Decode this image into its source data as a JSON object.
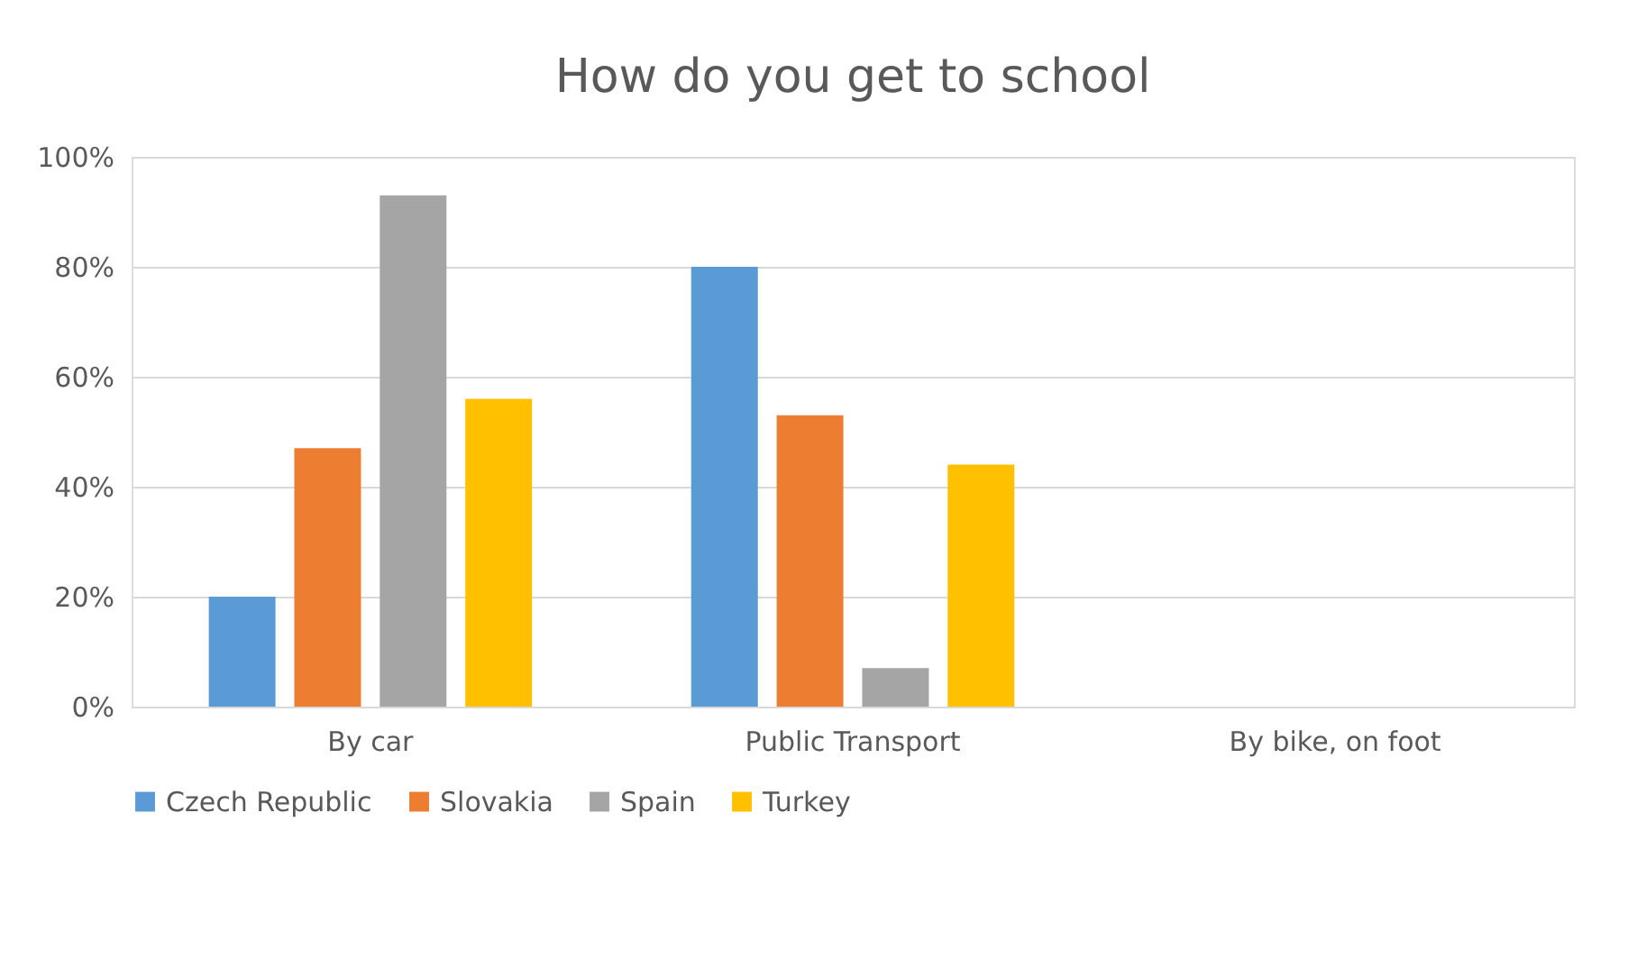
{
  "chart_data": {
    "type": "bar",
    "title": "How do you get to school",
    "categories": [
      "By car",
      "Public Transport",
      "By bike, on foot"
    ],
    "series": [
      {
        "name": "Czech Republic",
        "color": "#5b9bd5",
        "values": [
          20,
          80,
          0
        ]
      },
      {
        "name": "Slovakia",
        "color": "#ed7d31",
        "values": [
          47,
          53,
          0
        ]
      },
      {
        "name": "Spain",
        "color": "#a5a5a5",
        "values": [
          93,
          7,
          0
        ]
      },
      {
        "name": "Turkey",
        "color": "#ffc000",
        "values": [
          56,
          44,
          0
        ]
      }
    ],
    "ylim": [
      0,
      100
    ],
    "yticks": [
      {
        "value": 0,
        "label": "0%"
      },
      {
        "value": 20,
        "label": "20%"
      },
      {
        "value": 40,
        "label": "40%"
      },
      {
        "value": 60,
        "label": "60%"
      },
      {
        "value": 80,
        "label": "80%"
      },
      {
        "value": 100,
        "label": "100%"
      }
    ],
    "grid": "y",
    "legend": "bottom"
  }
}
